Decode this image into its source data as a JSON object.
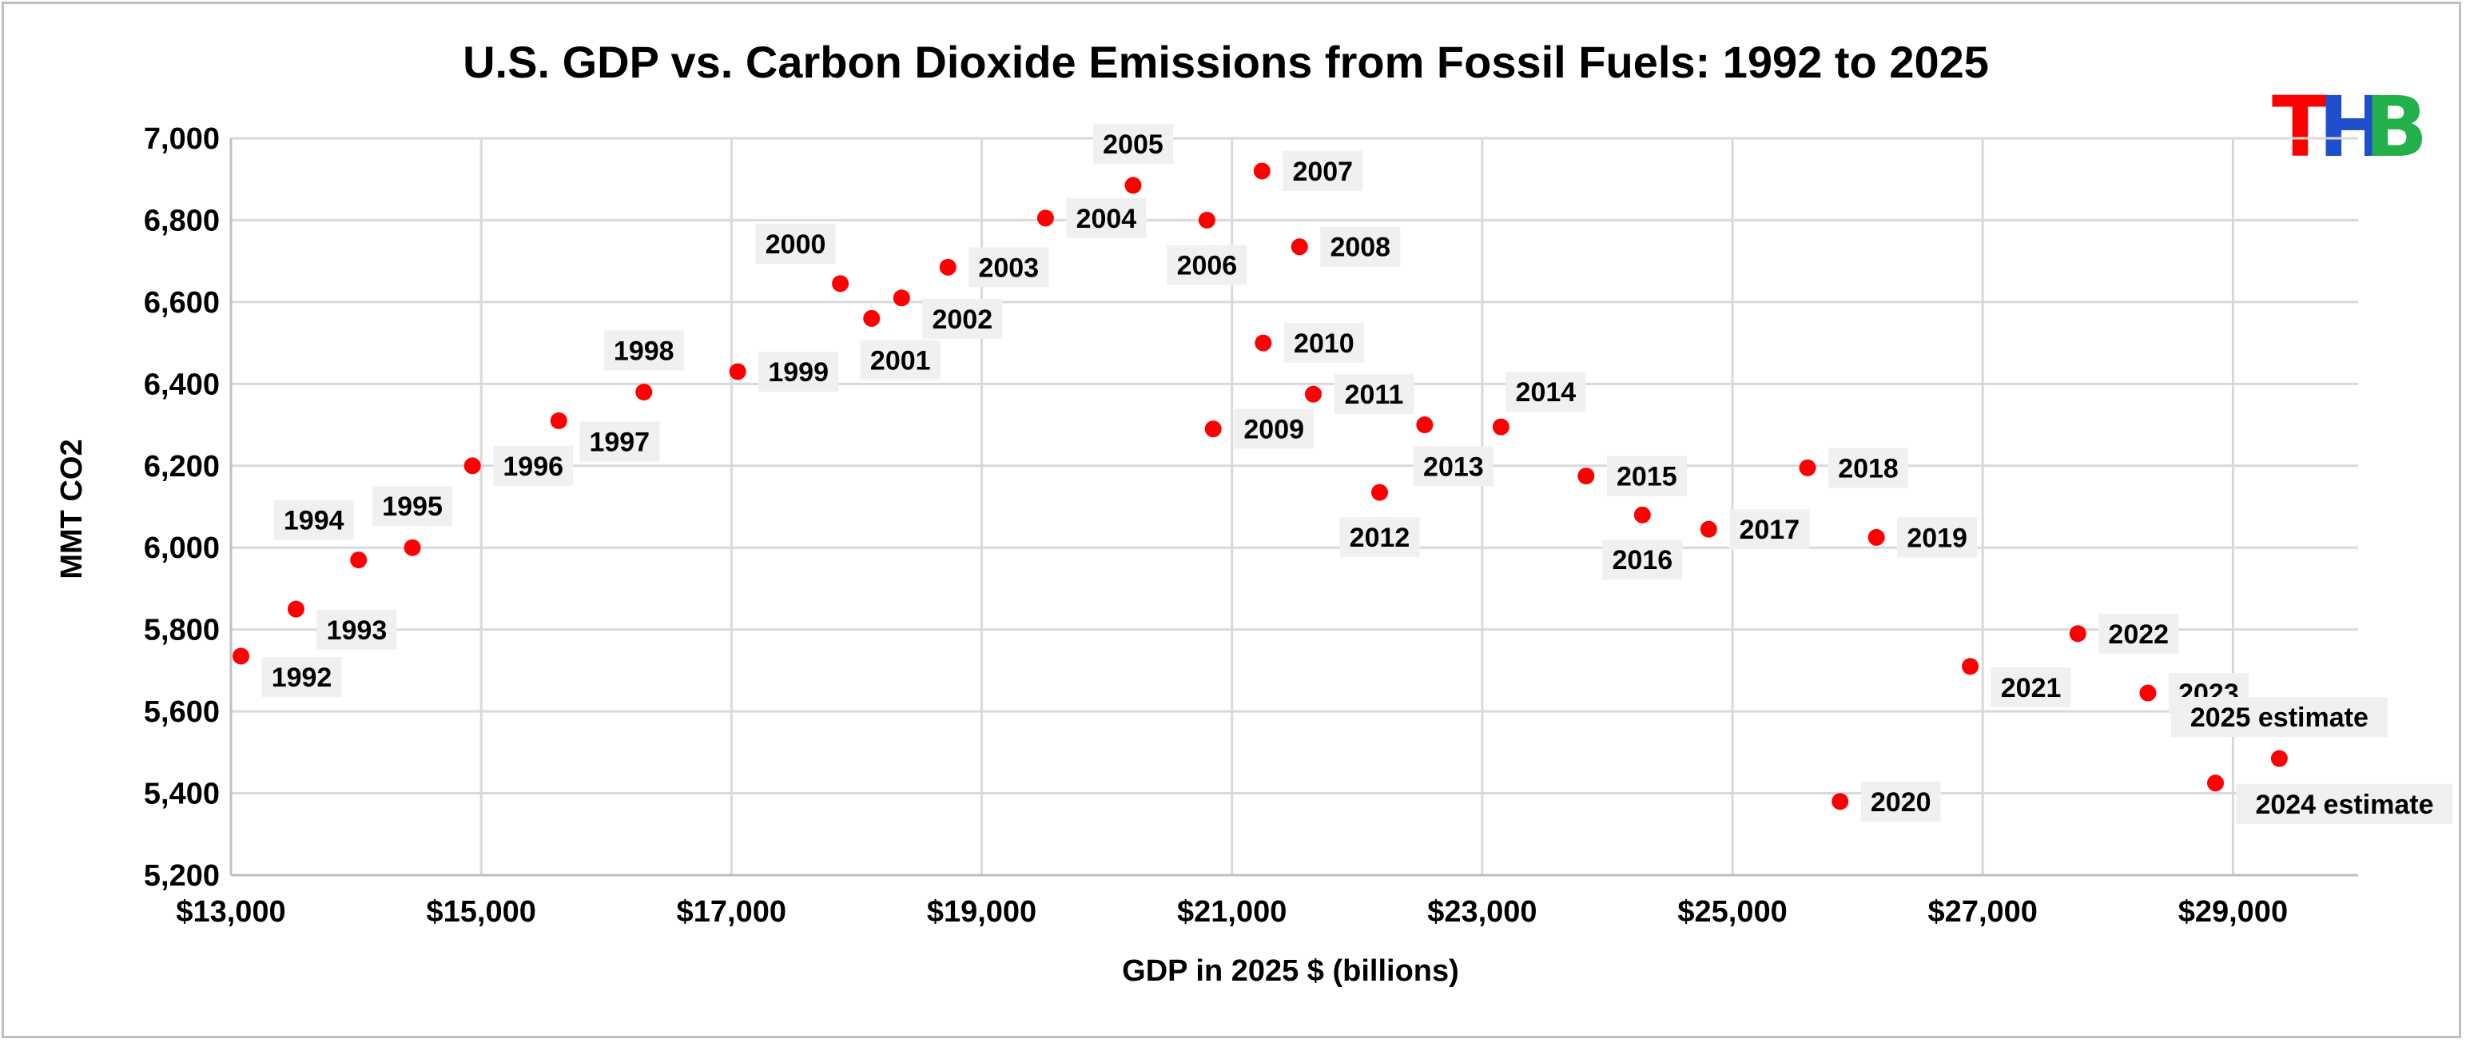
{
  "chart_data": {
    "type": "scatter",
    "title": "U.S.  GDP vs. Carbon Dioxide Emissions from Fossil Fuels: 1992 to 2025",
    "xlabel": "GDP in 2025 $ (billions)",
    "ylabel": "MMT CO2",
    "xlim": [
      13000,
      30000
    ],
    "ylim": [
      5200,
      7000
    ],
    "x_ticks": [
      13000,
      15000,
      17000,
      19000,
      21000,
      23000,
      25000,
      27000,
      29000
    ],
    "x_tick_labels": [
      "$13,000",
      "$15,000",
      "$17,000",
      "$19,000",
      "$21,000",
      "$23,000",
      "$25,000",
      "$27,000",
      "$29,000"
    ],
    "y_ticks": [
      5200,
      5400,
      5600,
      5800,
      6000,
      6200,
      6400,
      6600,
      6800,
      7000
    ],
    "y_tick_labels": [
      "5,200",
      "5,400",
      "5,600",
      "5,800",
      "6,000",
      "6,200",
      "6,400",
      "6,600",
      "6,800",
      "7,000"
    ],
    "grid": true,
    "marker_color": "#ff0000",
    "points": [
      {
        "label": "1992",
        "x": 13080,
        "y": 5735,
        "pos": "right-below"
      },
      {
        "label": "1993",
        "x": 13520,
        "y": 5850,
        "pos": "right-below"
      },
      {
        "label": "1994",
        "x": 14020,
        "y": 5970,
        "pos": "above-left"
      },
      {
        "label": "1995",
        "x": 14450,
        "y": 6000,
        "pos": "above"
      },
      {
        "label": "1996",
        "x": 14930,
        "y": 6200,
        "pos": "right"
      },
      {
        "label": "1997",
        "x": 15620,
        "y": 6310,
        "pos": "right-below"
      },
      {
        "label": "1998",
        "x": 16300,
        "y": 6380,
        "pos": "above"
      },
      {
        "label": "1999",
        "x": 17050,
        "y": 6430,
        "pos": "right"
      },
      {
        "label": "2000",
        "x": 17870,
        "y": 6645,
        "pos": "above-left"
      },
      {
        "label": "2001",
        "x": 18120,
        "y": 6560,
        "pos": "below-right"
      },
      {
        "label": "2002",
        "x": 18360,
        "y": 6610,
        "pos": "right-below"
      },
      {
        "label": "2003",
        "x": 18730,
        "y": 6685,
        "pos": "right"
      },
      {
        "label": "2004",
        "x": 19510,
        "y": 6805,
        "pos": "right"
      },
      {
        "label": "2005",
        "x": 20210,
        "y": 6885,
        "pos": "above"
      },
      {
        "label": "2006",
        "x": 20800,
        "y": 6800,
        "pos": "below"
      },
      {
        "label": "2007",
        "x": 21240,
        "y": 6920,
        "pos": "right"
      },
      {
        "label": "2008",
        "x": 21540,
        "y": 6735,
        "pos": "right"
      },
      {
        "label": "2009",
        "x": 20850,
        "y": 6290,
        "pos": "right"
      },
      {
        "label": "2010",
        "x": 21250,
        "y": 6500,
        "pos": "right"
      },
      {
        "label": "2011",
        "x": 21650,
        "y": 6375,
        "pos": "right"
      },
      {
        "label": "2012",
        "x": 22180,
        "y": 6135,
        "pos": "below"
      },
      {
        "label": "2013",
        "x": 22540,
        "y": 6300,
        "pos": "below-right"
      },
      {
        "label": "2014",
        "x": 23150,
        "y": 6295,
        "pos": "above-right"
      },
      {
        "label": "2015",
        "x": 23830,
        "y": 6175,
        "pos": "right"
      },
      {
        "label": "2016",
        "x": 24280,
        "y": 6080,
        "pos": "below"
      },
      {
        "label": "2017",
        "x": 24810,
        "y": 6045,
        "pos": "right"
      },
      {
        "label": "2018",
        "x": 25600,
        "y": 6195,
        "pos": "right"
      },
      {
        "label": "2019",
        "x": 26150,
        "y": 6025,
        "pos": "right"
      },
      {
        "label": "2020",
        "x": 25860,
        "y": 5380,
        "pos": "right"
      },
      {
        "label": "2021",
        "x": 26900,
        "y": 5710,
        "pos": "right-below"
      },
      {
        "label": "2022",
        "x": 27760,
        "y": 5790,
        "pos": "right"
      },
      {
        "label": "2023",
        "x": 28320,
        "y": 5645,
        "pos": "right"
      },
      {
        "label": "2024 estimate",
        "x": 28860,
        "y": 5425,
        "pos": "right-below"
      },
      {
        "label": "2025 estimate",
        "x": 29370,
        "y": 5485,
        "pos": "above"
      }
    ]
  },
  "logo": {
    "letters": [
      {
        "char": "T",
        "color": "#ff0000"
      },
      {
        "char": "H",
        "color": "#1f4fcc"
      },
      {
        "char": "B",
        "color": "#22b04a"
      }
    ]
  }
}
